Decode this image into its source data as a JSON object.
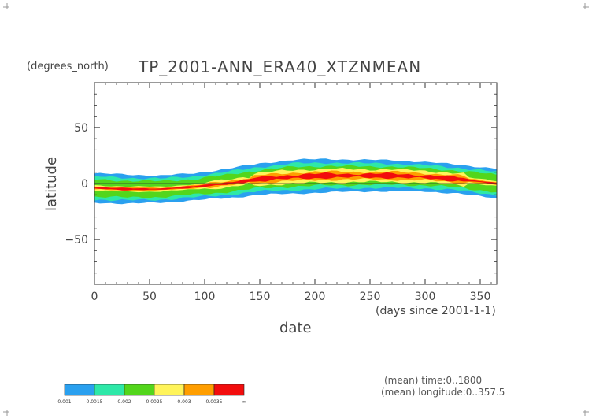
{
  "chart_data": {
    "type": "heatmap",
    "title_unit": "(degrees_north)",
    "title": "TP_2001-ANN_ERA40_XTZNMEAN",
    "xlabel": "date",
    "xunits": "(days since 2001-1-1)",
    "ylabel": "latitude",
    "xlim": [
      0,
      365
    ],
    "ylim": [
      -90,
      90
    ],
    "xticks": [
      "0",
      "50",
      "100",
      "150",
      "200",
      "250",
      "300",
      "350"
    ],
    "yticks": [
      "50",
      "0",
      "−50"
    ],
    "band": {
      "x": [
        0,
        30,
        60,
        90,
        120,
        150,
        180,
        210,
        240,
        270,
        300,
        330,
        365
      ],
      "center": [
        -4,
        -5,
        -5,
        -3,
        0,
        4,
        6,
        7,
        7,
        7,
        6,
        4,
        0
      ],
      "half_width": [
        13,
        13,
        12,
        12,
        13,
        14,
        15,
        15,
        14,
        14,
        13,
        13,
        13
      ]
    },
    "colorbar": {
      "levels": [
        "0.001",
        "0.0015",
        "0.002",
        "0.0025",
        "0.003",
        "0.0035",
        "∞"
      ],
      "colors": [
        "#2aa0ef",
        "#2ee8a8",
        "#53d61c",
        "#fff45a",
        "#ff9e00",
        "#f20d0d"
      ]
    },
    "notes": [
      "(mean) time:0..1800",
      "(mean) longitude:0..357.5"
    ]
  }
}
